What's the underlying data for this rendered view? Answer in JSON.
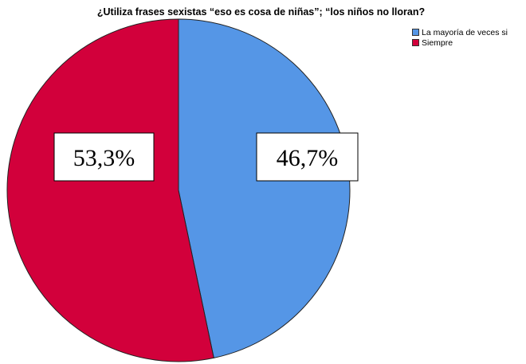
{
  "chart_data": {
    "type": "pie",
    "title": "¿Utiliza frases sexistas “eso es cosa de niñas”; “los niños no lloran?",
    "categories": [
      "La mayoría de veces si",
      "Siempre"
    ],
    "values": [
      46.7,
      53.3
    ],
    "data_labels": [
      "46,7%",
      "53,3%"
    ],
    "colors": [
      "#5596e6",
      "#d2003b"
    ],
    "legend_position": "top-right",
    "start_angle_deg": 0,
    "direction": "clockwise"
  }
}
